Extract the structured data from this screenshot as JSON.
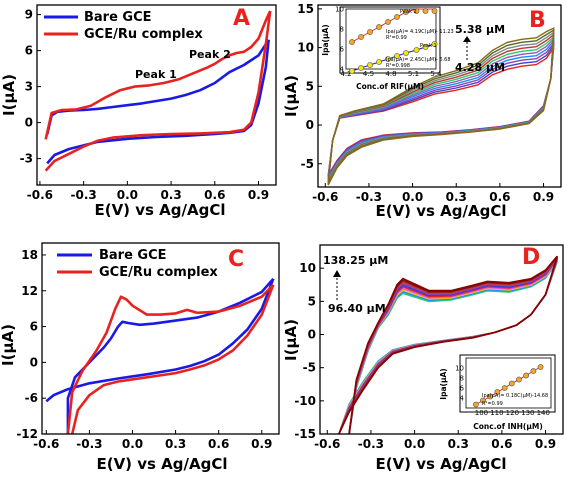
{
  "chart_data": [
    {
      "panel": "A",
      "type": "line",
      "xlabel": "E(V) vs Ag/AgCl",
      "ylabel": "I(µA)",
      "xlim": [
        -0.62,
        1.02
      ],
      "ylim": [
        -5.2,
        9.8
      ],
      "xticks": [
        -0.6,
        -0.3,
        0.0,
        0.3,
        0.6,
        0.9
      ],
      "xtick_labels": [
        "-0.6",
        "-0.3",
        "0.0",
        "0.3",
        "0.6",
        "0.9"
      ],
      "yticks": [
        -3,
        0,
        3,
        6,
        9
      ],
      "ytick_labels": [
        "-3",
        "0",
        "3",
        "6",
        "9"
      ],
      "legend": [
        "Bare GCE",
        "GCE/Ru complex"
      ],
      "legend_position": "top-left",
      "annotations": [
        "Peak 1",
        "Peak 2"
      ],
      "series": [
        {
          "name": "Bare GCE",
          "color": "#1a1ae6",
          "forward": [
            [
              -0.55,
              -1.0
            ],
            [
              -0.52,
              0.6
            ],
            [
              -0.48,
              0.9
            ],
            [
              -0.4,
              1.0
            ],
            [
              -0.3,
              1.05
            ],
            [
              -0.2,
              1.15
            ],
            [
              -0.1,
              1.3
            ],
            [
              0.0,
              1.45
            ],
            [
              0.1,
              1.6
            ],
            [
              0.2,
              1.8
            ],
            [
              0.3,
              2.0
            ],
            [
              0.4,
              2.3
            ],
            [
              0.5,
              2.7
            ],
            [
              0.6,
              3.3
            ],
            [
              0.7,
              4.2
            ],
            [
              0.8,
              4.8
            ],
            [
              0.9,
              5.6
            ],
            [
              0.97,
              6.9
            ]
          ],
          "reverse": [
            [
              0.97,
              6.9
            ],
            [
              0.95,
              4.6
            ],
            [
              0.9,
              1.6
            ],
            [
              0.85,
              -0.2
            ],
            [
              0.8,
              -0.7
            ],
            [
              0.7,
              -0.85
            ],
            [
              0.6,
              -0.95
            ],
            [
              0.4,
              -1.1
            ],
            [
              0.2,
              -1.2
            ],
            [
              0.0,
              -1.35
            ],
            [
              -0.2,
              -1.6
            ],
            [
              -0.3,
              -1.9
            ],
            [
              -0.4,
              -2.2
            ],
            [
              -0.5,
              -2.7
            ],
            [
              -0.55,
              -3.4
            ]
          ]
        },
        {
          "name": "GCE/Ru complex",
          "color": "#e8231f",
          "forward": [
            [
              -0.56,
              -1.4
            ],
            [
              -0.52,
              0.8
            ],
            [
              -0.45,
              1.05
            ],
            [
              -0.35,
              1.1
            ],
            [
              -0.25,
              1.4
            ],
            [
              -0.15,
              2.1
            ],
            [
              -0.05,
              2.7
            ],
            [
              0.05,
              3.0
            ],
            [
              0.15,
              3.1
            ],
            [
              0.25,
              3.3
            ],
            [
              0.35,
              3.6
            ],
            [
              0.45,
              4.1
            ],
            [
              0.55,
              4.6
            ],
            [
              0.6,
              4.9
            ],
            [
              0.65,
              5.3
            ],
            [
              0.7,
              5.6
            ],
            [
              0.75,
              5.8
            ],
            [
              0.8,
              5.9
            ],
            [
              0.85,
              6.3
            ],
            [
              0.9,
              7.0
            ],
            [
              0.95,
              8.5
            ],
            [
              0.98,
              9.3
            ]
          ],
          "reverse": [
            [
              0.98,
              9.3
            ],
            [
              0.95,
              6.5
            ],
            [
              0.9,
              2.5
            ],
            [
              0.85,
              0.0
            ],
            [
              0.8,
              -0.6
            ],
            [
              0.7,
              -0.8
            ],
            [
              0.5,
              -0.9
            ],
            [
              0.3,
              -0.95
            ],
            [
              0.1,
              -1.05
            ],
            [
              -0.1,
              -1.25
            ],
            [
              -0.2,
              -1.5
            ],
            [
              -0.3,
              -2.0
            ],
            [
              -0.4,
              -2.6
            ],
            [
              -0.5,
              -3.2
            ],
            [
              -0.56,
              -4.0
            ]
          ]
        }
      ]
    },
    {
      "panel": "B",
      "type": "line",
      "xlabel": "E(V) vs Ag/AgCl",
      "ylabel": "I(µA)",
      "xlim": [
        -0.65,
        1.02
      ],
      "ylim": [
        -8,
        15.5
      ],
      "xticks": [
        -0.6,
        -0.3,
        0.0,
        0.3,
        0.6,
        0.9
      ],
      "xtick_labels": [
        "-0.6",
        "-0.3",
        "0.0",
        "0.3",
        "0.6",
        "0.9"
      ],
      "yticks": [
        -5,
        0,
        5,
        10,
        15
      ],
      "ytick_labels": [
        "-5",
        "0",
        "5",
        "10",
        "15"
      ],
      "annotations": [
        "5.38 µM",
        "4.28 µM"
      ],
      "series_colors": [
        "#e8231f",
        "#4444cc",
        "#8e44ad",
        "#1a8cff",
        "#9b59b6",
        "#2ecc71",
        "#c0392b",
        "#7f8c8d",
        "#556b2f",
        "#8b6914"
      ],
      "concentrations_uM": [
        4.28,
        5.38
      ],
      "inset": {
        "xlabel": "Conc.of RIF(µM)",
        "ylabel": "Ipa(µA)",
        "xlim": [
          4.2,
          5.4
        ],
        "ylim": [
          4,
          10
        ],
        "xticks": [
          4.2,
          4.5,
          4.8,
          5.1,
          5.4
        ],
        "xtick_labels": [
          "4.2",
          "4.5",
          "4.8",
          "5.1",
          "5.4"
        ],
        "yticks": [
          4,
          6,
          8,
          10
        ],
        "ytick_labels": [
          "4",
          "6",
          "8",
          "10"
        ],
        "series": [
          {
            "name": "Peak 2",
            "equation": "Ipa(µA)= 4.19C(µM)- 11.23",
            "r2": "R²=0.99",
            "x": [
              4.28,
              4.4,
              4.52,
              4.64,
              4.76,
              4.88,
              5.0,
              5.14,
              5.26,
              5.38
            ],
            "y": [
              6.7,
              7.2,
              7.7,
              8.2,
              8.7,
              9.2,
              9.7,
              10.3,
              10.8,
              11.3
            ]
          },
          {
            "name": "Peak 1",
            "equation": "Ipa(µA)= 2.45C(µM)- 6.68",
            "r2": "R²=0.998",
            "x": [
              4.28,
              4.4,
              4.52,
              4.64,
              4.76,
              4.88,
              5.0,
              5.14,
              5.26,
              5.38
            ],
            "y": [
              3.8,
              4.1,
              4.4,
              4.7,
              5.0,
              5.3,
              5.6,
              5.9,
              6.2,
              6.5
            ]
          }
        ]
      }
    },
    {
      "panel": "C",
      "type": "line",
      "xlabel": "E(V) vs Ag/AgCl",
      "ylabel": "I(µA)",
      "xlim": [
        -0.63,
        1.02
      ],
      "ylim": [
        -12,
        20
      ],
      "xticks": [
        -0.6,
        -0.3,
        0.0,
        0.3,
        0.6,
        0.9
      ],
      "xtick_labels": [
        "-0.6",
        "-0.3",
        "0.0",
        "0.3",
        "0.6",
        "0.9"
      ],
      "yticks": [
        -12,
        -6,
        0,
        6,
        12,
        18
      ],
      "ytick_labels": [
        "-12",
        "-6",
        "0",
        "6",
        "12",
        "18"
      ],
      "legend": [
        "Bare GCE",
        "GCE/Ru complex"
      ],
      "legend_position": "top-left",
      "series": [
        {
          "name": "Bare GCE",
          "color": "#1a1ae6",
          "forward": [
            [
              -0.45,
              -12
            ],
            [
              -0.45,
              -6
            ],
            [
              -0.4,
              -2.5
            ],
            [
              -0.3,
              0.0
            ],
            [
              -0.2,
              2.5
            ],
            [
              -0.15,
              4.0
            ],
            [
              -0.1,
              6.0
            ],
            [
              -0.07,
              6.8
            ],
            [
              -0.03,
              6.6
            ],
            [
              0.05,
              6.3
            ],
            [
              0.15,
              6.5
            ],
            [
              0.3,
              7.0
            ],
            [
              0.45,
              7.5
            ],
            [
              0.6,
              8.5
            ],
            [
              0.75,
              10.0
            ],
            [
              0.9,
              11.8
            ],
            [
              0.98,
              14.0
            ]
          ],
          "reverse": [
            [
              0.98,
              14.0
            ],
            [
              0.9,
              9.0
            ],
            [
              0.8,
              5.5
            ],
            [
              0.7,
              3.2
            ],
            [
              0.6,
              1.3
            ],
            [
              0.5,
              0.2
            ],
            [
              0.4,
              -0.6
            ],
            [
              0.3,
              -1.2
            ],
            [
              0.1,
              -2.0
            ],
            [
              -0.1,
              -2.7
            ],
            [
              -0.3,
              -3.5
            ],
            [
              -0.45,
              -4.5
            ],
            [
              -0.55,
              -5.5
            ],
            [
              -0.6,
              -6.5
            ]
          ]
        },
        {
          "name": "GCE/Ru complex",
          "color": "#e8231f",
          "forward": [
            [
              -0.45,
              -12
            ],
            [
              -0.42,
              -5.0
            ],
            [
              -0.35,
              -1.5
            ],
            [
              -0.25,
              2.0
            ],
            [
              -0.18,
              5.0
            ],
            [
              -0.12,
              9.0
            ],
            [
              -0.08,
              11.0
            ],
            [
              -0.04,
              10.5
            ],
            [
              0.0,
              9.5
            ],
            [
              0.1,
              8.0
            ],
            [
              0.2,
              8.0
            ],
            [
              0.3,
              8.2
            ],
            [
              0.38,
              8.8
            ],
            [
              0.45,
              8.3
            ],
            [
              0.6,
              8.5
            ],
            [
              0.75,
              9.5
            ],
            [
              0.9,
              11.0
            ],
            [
              0.98,
              13.0
            ]
          ],
          "reverse": [
            [
              0.98,
              13.0
            ],
            [
              0.9,
              8.0
            ],
            [
              0.8,
              4.5
            ],
            [
              0.7,
              2.0
            ],
            [
              0.6,
              0.5
            ],
            [
              0.5,
              -0.5
            ],
            [
              0.4,
              -1.2
            ],
            [
              0.3,
              -1.8
            ],
            [
              0.1,
              -2.5
            ],
            [
              -0.1,
              -3.2
            ],
            [
              -0.2,
              -3.8
            ],
            [
              -0.3,
              -5.5
            ],
            [
              -0.38,
              -8.0
            ],
            [
              -0.42,
              -12
            ]
          ]
        }
      ]
    },
    {
      "panel": "D",
      "type": "line",
      "xlabel": "E(V) vs Ag/AgCl",
      "ylabel": "I(µA)",
      "xlim": [
        -0.65,
        1.02
      ],
      "ylim": [
        -15,
        13.5
      ],
      "xticks": [
        -0.6,
        -0.3,
        0.0,
        0.3,
        0.6,
        0.9
      ],
      "xtick_labels": [
        "-0.6",
        "-0.3",
        "0.0",
        "0.3",
        "0.6",
        "0.9"
      ],
      "yticks": [
        -15,
        -10,
        -5,
        0,
        5,
        10
      ],
      "ytick_labels": [
        "-15",
        "-10",
        "-5",
        "0",
        "5",
        "10"
      ],
      "annotations": [
        "138.25 µM",
        "96.40 µM"
      ],
      "series_colors": [
        "#2ecc71",
        "#1a8cff",
        "#f1c40f",
        "#e056fd",
        "#e8231f",
        "#3b3bdc",
        "#8e44ad",
        "#c0392b",
        "#7b1010",
        "#8b0000"
      ],
      "concentrations_uM": [
        96.4,
        138.25
      ],
      "inset": {
        "xlabel": "Conc.of INH(µM)",
        "ylabel": "Ipa(µA)",
        "xlim": [
          90,
          145
        ],
        "ylim": [
          2,
          12
        ],
        "xticks": [
          100,
          110,
          120,
          130,
          140
        ],
        "xtick_labels": [
          "100",
          "110",
          "120",
          "130",
          "140"
        ],
        "yticks": [
          4,
          6,
          8,
          10
        ],
        "ytick_labels": [
          "4",
          "6",
          "8",
          "10"
        ],
        "equation": "Ipa(µA)= 0.18C(µM)-14.68",
        "r2": "R²=0.99",
        "points": {
          "x": [
            96.4,
            101.0,
            105.7,
            110.3,
            115.0,
            119.6,
            124.3,
            128.9,
            133.6,
            138.25
          ],
          "y": [
            2.7,
            3.5,
            4.3,
            5.2,
            6.0,
            6.9,
            7.7,
            8.5,
            9.4,
            10.2
          ]
        }
      }
    }
  ]
}
